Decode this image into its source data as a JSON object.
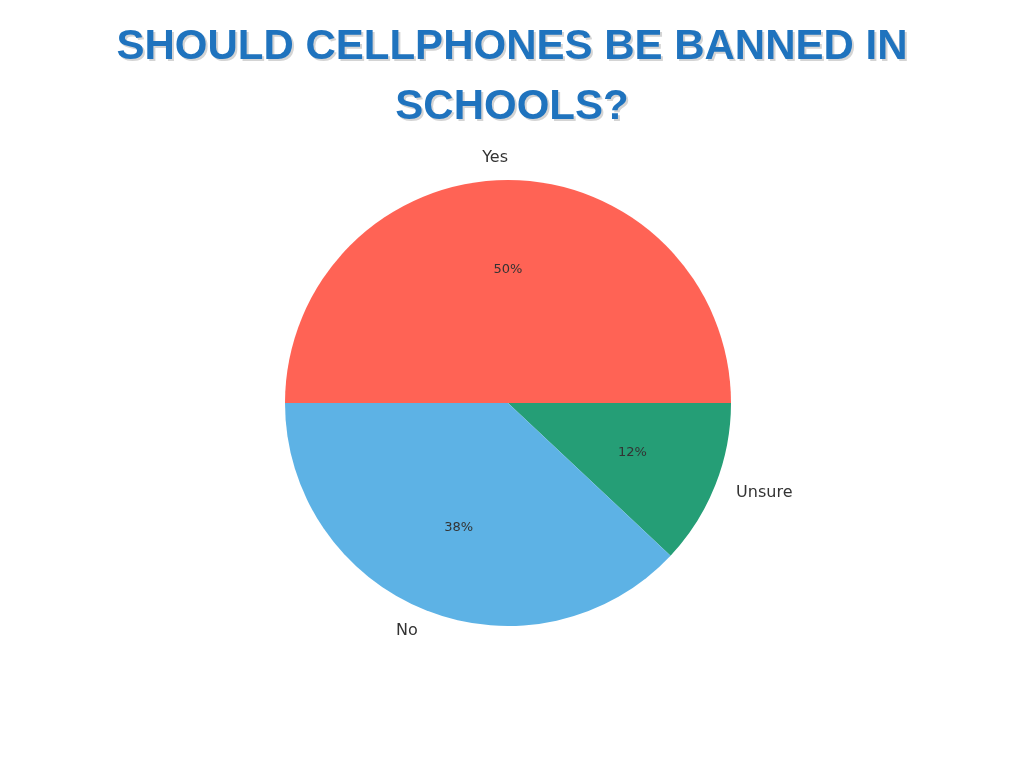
{
  "chart_data": {
    "type": "pie",
    "title": "SHOULD CELLPHONES BE BANNED IN SCHOOLS?",
    "categories": [
      "Yes",
      "Unsure",
      "No"
    ],
    "values": [
      50,
      12,
      38
    ],
    "colors": [
      "#ff6355",
      "#259e76",
      "#5db2e5"
    ],
    "value_labels": [
      "50%",
      "12%",
      "38%"
    ]
  }
}
